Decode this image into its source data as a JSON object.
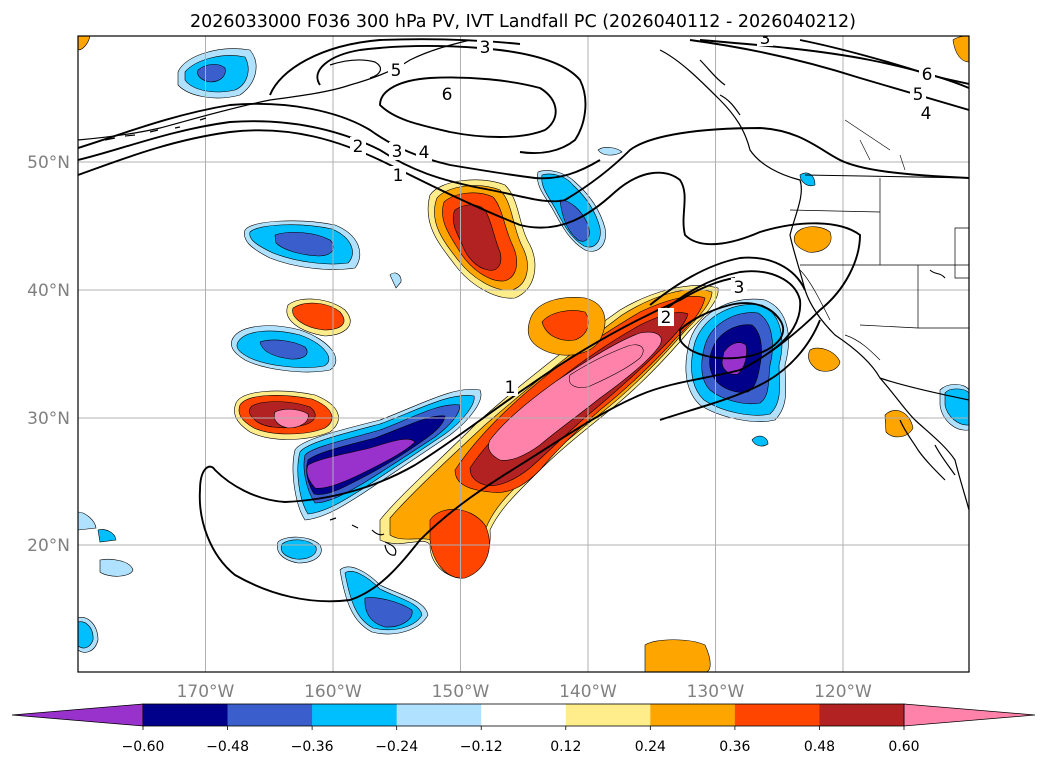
{
  "title": "2026033000 F036 300 hPa PV, IVT Landfall PC (2026040112 - 2026040212)",
  "lon_labels": [
    "170°W",
    "160°W",
    "150°W",
    "140°W",
    "130°W",
    "120°W"
  ],
  "lat_labels": [
    "50°N",
    "40°N",
    "30°N",
    "20°N"
  ],
  "colorbar": {
    "colors": [
      "#9932cc",
      "#00008b",
      "#3a5fcd",
      "#00bfff",
      "#b0e2ff",
      "#ffffff",
      "#ffec8b",
      "#ffa500",
      "#ff4500",
      "#b22222",
      "#ff82ab"
    ],
    "ticks": [
      "−0.60",
      "−0.48",
      "−0.36",
      "−0.24",
      "−0.12",
      "0.12",
      "0.24",
      "0.36",
      "0.48",
      "0.60"
    ]
  },
  "contour_labels": [
    {
      "text": "3",
      "c": "c3a"
    },
    {
      "text": "3",
      "c": "c3b"
    },
    {
      "text": "6",
      "c": "c6a"
    },
    {
      "text": "6",
      "c": "c6b"
    },
    {
      "text": "5",
      "c": "c5a"
    },
    {
      "text": "5",
      "c": "c5b"
    },
    {
      "text": "4",
      "c": "c4a"
    },
    {
      "text": "2",
      "c": "c2a"
    },
    {
      "text": "3",
      "c": "c3c"
    },
    {
      "text": "4",
      "c": "c4b"
    },
    {
      "text": "1",
      "c": "c1a"
    },
    {
      "text": "1",
      "c": "c1b"
    },
    {
      "text": "2",
      "c": "c2b"
    },
    {
      "text": "3",
      "c": "c3d"
    }
  ]
}
